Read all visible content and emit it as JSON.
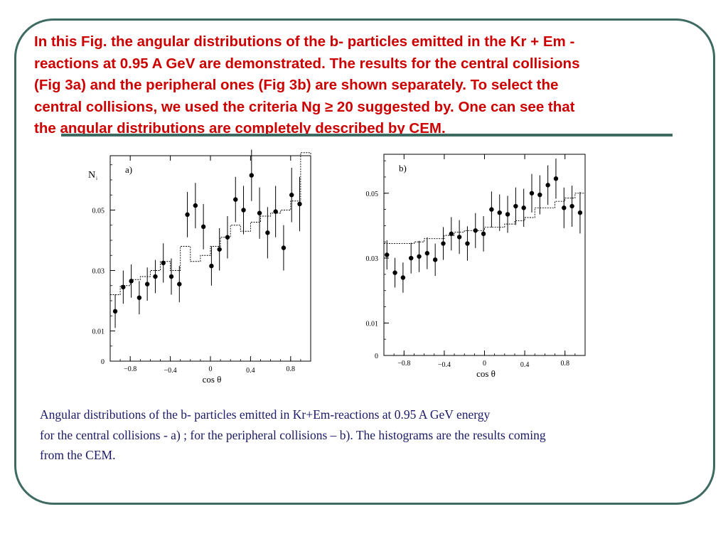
{
  "heading": {
    "line1": "In this Fig. the angular distributions of the b- particles emitted in the Kr + Em -",
    "line2": "reactions at 0.95 A GeV are demonstrated. The results for the central collisions",
    "line3": "(Fig 3a) and the peripheral ones (Fig 3b) are shown separately. To select the",
    "line4": "central collisions, we used the criteria Ng ≥ 20 suggested by. One can see that",
    "line5": "the angular distributions are completely described by CEM."
  },
  "caption": {
    "line1": " Angular distributions of the b- particles emitted in Kr+Em-reactions at 0.95 A GeV energy",
    "line2": "for  the central collisions  - a) ;  for  the  peripheral collisions – b). The histograms are the results coming",
    "line3": "from the CEM."
  },
  "colors": {
    "heading": "#cc0000",
    "caption": "#1a1a66",
    "frame": "#3d6a61",
    "data": "#000000"
  },
  "chart_data": [
    {
      "type": "scatter",
      "panel_label": "a)",
      "ylabel": "N",
      "ylabel_sub": "i",
      "xlabel": "cos θ",
      "xlim": [
        -1.0,
        1.0
      ],
      "ylim": [
        0.0,
        0.068
      ],
      "xticks": [
        "−0.8",
        "−0.4",
        "0",
        "0.4",
        "0.8"
      ],
      "xtick_values": [
        -0.8,
        -0.4,
        0,
        0.4,
        0.8
      ],
      "yticks": [
        "0",
        "0.01",
        "0.03",
        "0.05"
      ],
      "ytick_values": [
        0,
        0.01,
        0.03,
        0.05
      ],
      "series": [
        {
          "kind": "data_points",
          "x": [
            -0.95,
            -0.87,
            -0.79,
            -0.71,
            -0.63,
            -0.55,
            -0.47,
            -0.39,
            -0.31,
            -0.23,
            -0.15,
            -0.07,
            0.01,
            0.09,
            0.17,
            0.25,
            0.33,
            0.41,
            0.49,
            0.57,
            0.65,
            0.73,
            0.81,
            0.89
          ],
          "y": [
            0.0165,
            0.0245,
            0.0265,
            0.021,
            0.0255,
            0.028,
            0.0325,
            0.028,
            0.0255,
            0.0485,
            0.0515,
            0.0445,
            0.0315,
            0.037,
            0.041,
            0.0535,
            0.05,
            0.0615,
            0.049,
            0.0425,
            0.0495,
            0.0375,
            0.055,
            0.052
          ],
          "err": [
            0.0055,
            0.0055,
            0.0055,
            0.0055,
            0.0055,
            0.0055,
            0.0065,
            0.006,
            0.006,
            0.0075,
            0.0075,
            0.0075,
            0.0065,
            0.007,
            0.007,
            0.0075,
            0.008,
            0.0085,
            0.0085,
            0.0085,
            0.0085,
            0.0075,
            0.009,
            0.009
          ]
        },
        {
          "kind": "CEM_histogram",
          "edges": [
            -1.0,
            -0.9,
            -0.8,
            -0.7,
            -0.6,
            -0.5,
            -0.4,
            -0.3,
            -0.2,
            -0.1,
            0.0,
            0.1,
            0.2,
            0.3,
            0.4,
            0.5,
            0.6,
            0.7,
            0.8,
            0.9,
            1.0
          ],
          "values": [
            0.022,
            0.025,
            0.027,
            0.028,
            0.03,
            0.033,
            0.03,
            0.038,
            0.033,
            0.035,
            0.038,
            0.041,
            0.045,
            0.043,
            0.046,
            0.048,
            0.049,
            0.05,
            0.053,
            0.069
          ]
        }
      ]
    },
    {
      "type": "scatter",
      "panel_label": "b)",
      "xlabel": "cos θ",
      "xlim": [
        -1.0,
        1.0
      ],
      "ylim": [
        0.0,
        0.062
      ],
      "xticks": [
        "−0.8",
        "−0.4",
        "0",
        "0.4",
        "0.8"
      ],
      "xtick_values": [
        -0.8,
        -0.4,
        0,
        0.4,
        0.8
      ],
      "yticks": [
        "0",
        "0.01",
        "0.03",
        "0.05"
      ],
      "ytick_values": [
        0,
        0.01,
        0.03,
        0.05
      ],
      "series": [
        {
          "kind": "data_points",
          "x": [
            -0.97,
            -0.89,
            -0.81,
            -0.73,
            -0.65,
            -0.57,
            -0.49,
            -0.41,
            -0.33,
            -0.25,
            -0.17,
            -0.09,
            -0.01,
            0.07,
            0.15,
            0.23,
            0.31,
            0.39,
            0.47,
            0.55,
            0.63,
            0.71,
            0.79,
            0.87,
            0.95
          ],
          "y": [
            0.031,
            0.0255,
            0.024,
            0.03,
            0.0305,
            0.0315,
            0.0295,
            0.0345,
            0.0375,
            0.0365,
            0.0345,
            0.0385,
            0.0375,
            0.045,
            0.044,
            0.0435,
            0.046,
            0.0455,
            0.05,
            0.0495,
            0.0525,
            0.0545,
            0.0455,
            0.046,
            0.044
          ]
        },
        {
          "kind": "CEM_histogram",
          "edges": [
            -1.0,
            -0.9,
            -0.8,
            -0.7,
            -0.6,
            -0.5,
            -0.4,
            -0.3,
            -0.2,
            -0.1,
            0.0,
            0.1,
            0.2,
            0.3,
            0.4,
            0.5,
            0.6,
            0.7,
            0.8,
            0.9,
            1.0
          ],
          "values": [
            0.0345,
            0.0345,
            0.0345,
            0.035,
            0.036,
            0.036,
            0.037,
            0.038,
            0.0385,
            0.0385,
            0.0395,
            0.0395,
            0.0405,
            0.0415,
            0.0425,
            0.0455,
            0.0455,
            0.0475,
            0.0485,
            0.05
          ]
        }
      ]
    }
  ]
}
